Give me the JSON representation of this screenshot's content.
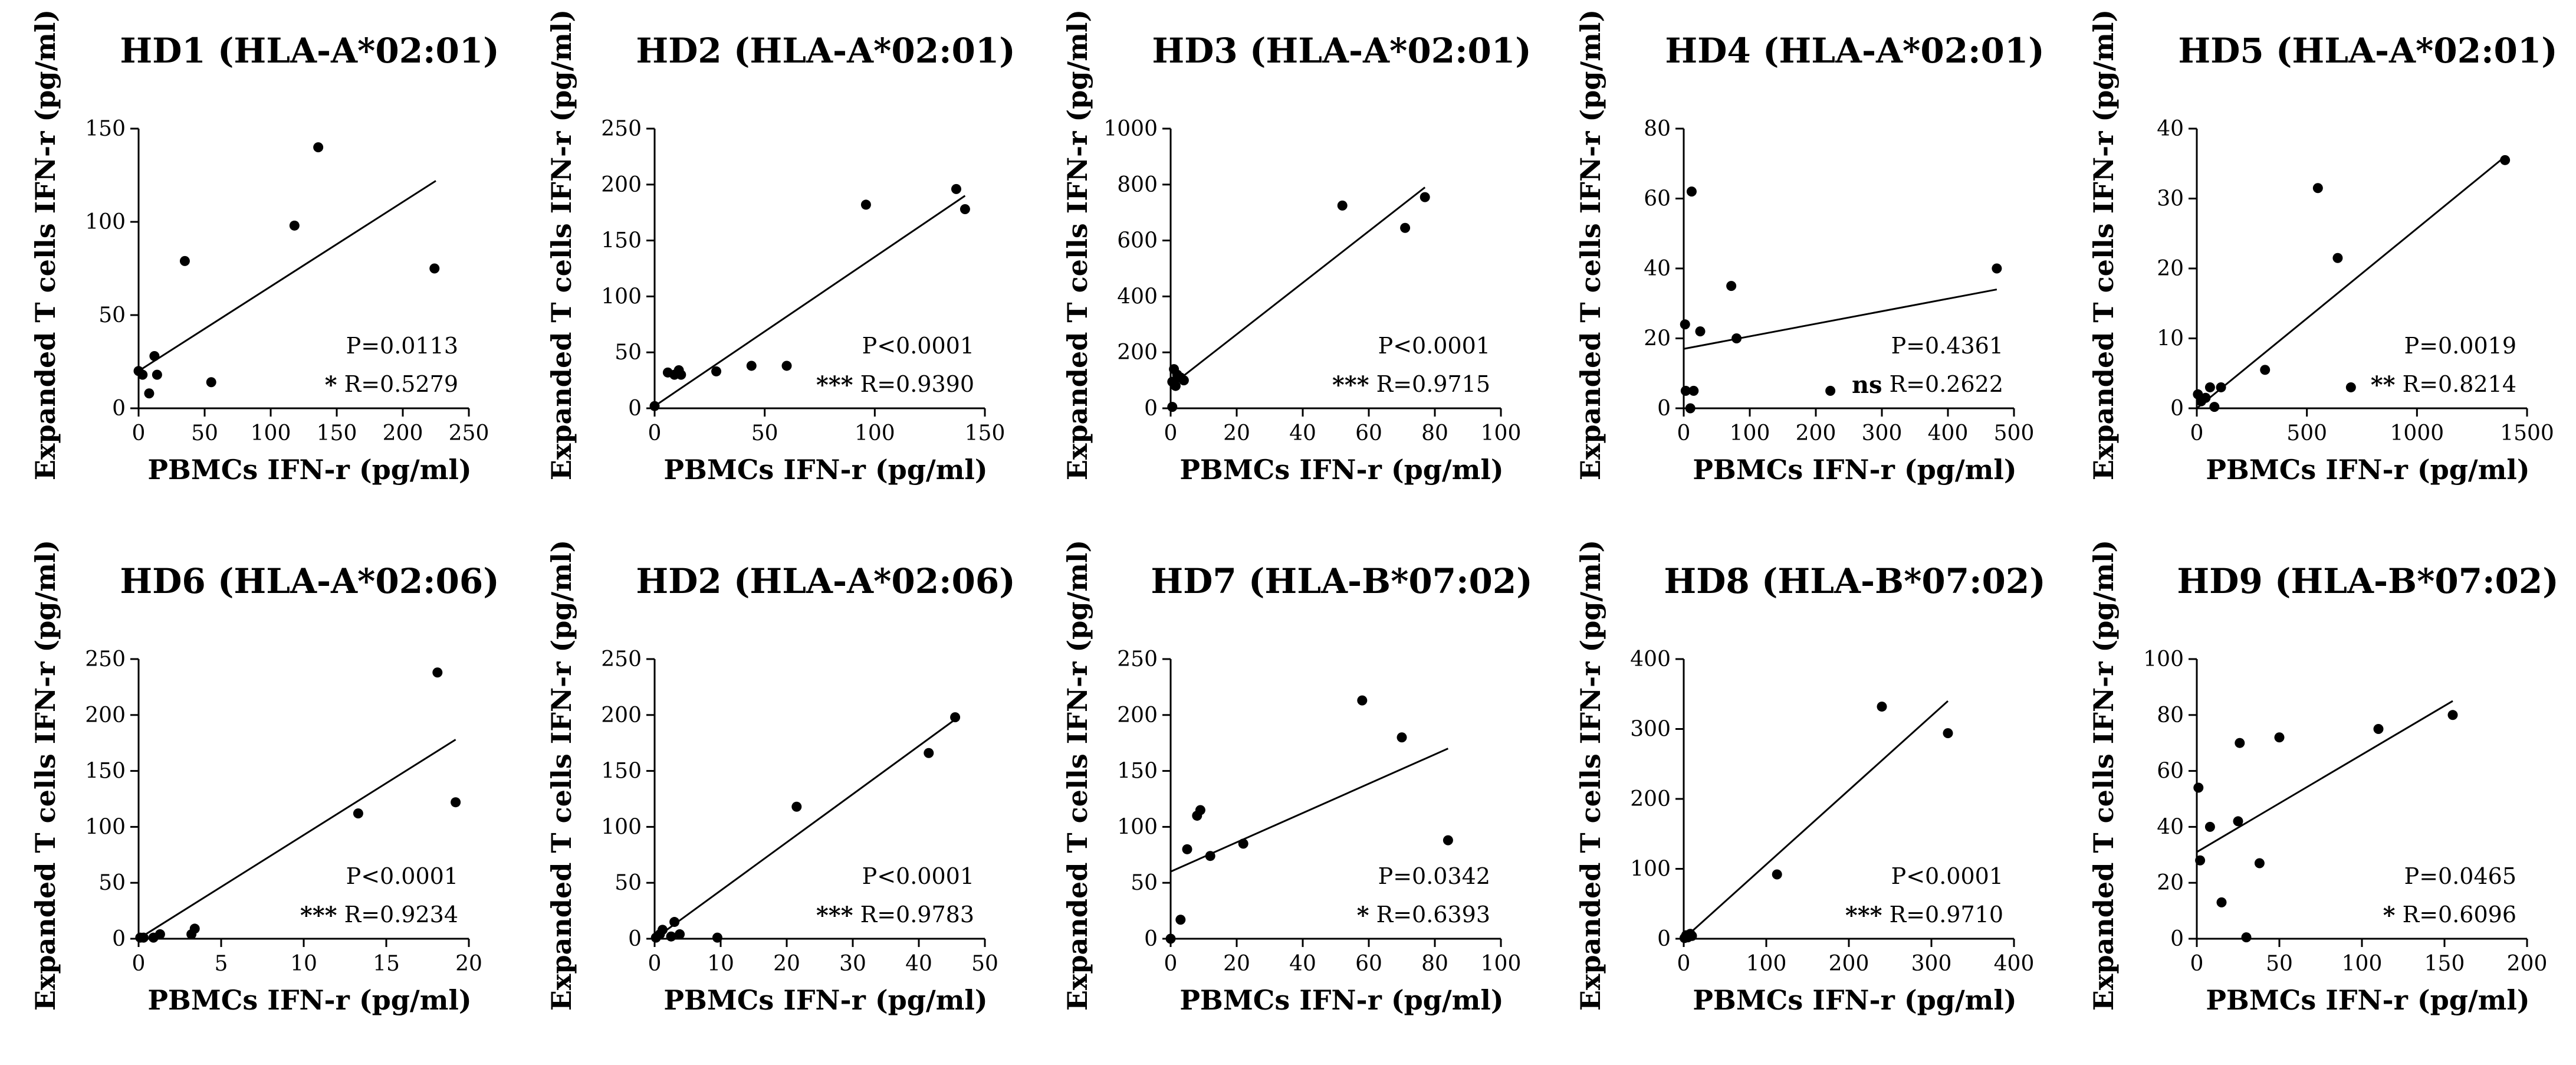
{
  "chart_data": [
    {
      "type": "scatter",
      "title": "HD1 (HLA-A*02:01)",
      "xlabel": "PBMCs IFN-r (pg/ml)",
      "ylabel": "Expanded T cells IFN-r (pg/ml)",
      "xlim": [
        0,
        250
      ],
      "ylim": [
        0,
        150
      ],
      "xticks": [
        0,
        50,
        100,
        150,
        200,
        250
      ],
      "yticks": [
        0,
        50,
        100,
        150
      ],
      "points": [
        [
          0,
          20
        ],
        [
          3,
          18
        ],
        [
          8,
          8
        ],
        [
          12,
          28
        ],
        [
          14,
          18
        ],
        [
          35,
          79
        ],
        [
          55,
          14
        ],
        [
          118,
          98
        ],
        [
          136,
          140
        ],
        [
          224,
          75
        ]
      ],
      "fit": [
        [
          0,
          20
        ],
        [
          225,
          122
        ]
      ],
      "p_text": "P=0.0113",
      "r_text": "R=0.5279",
      "significance": "*"
    },
    {
      "type": "scatter",
      "title": "HD2 (HLA-A*02:01)",
      "xlabel": "PBMCs IFN-r (pg/ml)",
      "ylabel": "Expanded T cells IFN-r (pg/ml)",
      "xlim": [
        0,
        150
      ],
      "ylim": [
        0,
        250
      ],
      "xticks": [
        0,
        50,
        100,
        150
      ],
      "yticks": [
        0,
        50,
        100,
        150,
        200,
        250
      ],
      "points": [
        [
          0,
          2
        ],
        [
          6,
          32
        ],
        [
          9,
          30
        ],
        [
          11,
          34
        ],
        [
          12,
          30
        ],
        [
          28,
          33
        ],
        [
          44,
          38
        ],
        [
          60,
          38
        ],
        [
          96,
          182
        ],
        [
          137,
          196
        ],
        [
          141,
          178
        ]
      ],
      "fit": [
        [
          0,
          2
        ],
        [
          141,
          190
        ]
      ],
      "p_text": "P<0.0001",
      "r_text": "R=0.9390",
      "significance": "***"
    },
    {
      "type": "scatter",
      "title": "HD3 (HLA-A*02:01)",
      "xlabel": "PBMCs IFN-r (pg/ml)",
      "ylabel": "Expanded T cells IFN-r (pg/ml)",
      "xlim": [
        0,
        100
      ],
      "ylim": [
        0,
        1000
      ],
      "xticks": [
        0,
        20,
        40,
        60,
        80,
        100
      ],
      "yticks": [
        0,
        200,
        400,
        600,
        800,
        1000
      ],
      "points": [
        [
          0.5,
          5
        ],
        [
          0.5,
          95
        ],
        [
          1,
          140
        ],
        [
          1.5,
          80
        ],
        [
          2,
          120
        ],
        [
          3,
          110
        ],
        [
          4,
          100
        ],
        [
          52,
          725
        ],
        [
          71,
          645
        ],
        [
          77,
          755
        ]
      ],
      "fit": [
        [
          0,
          80
        ],
        [
          77,
          790
        ]
      ],
      "p_text": "P<0.0001",
      "r_text": "R=0.9715",
      "significance": "***"
    },
    {
      "type": "scatter",
      "title": "HD4 (HLA-A*02:01)",
      "xlabel": "PBMCs IFN-r (pg/ml)",
      "ylabel": "Expanded T cells IFN-r (pg/ml)",
      "xlim": [
        0,
        500
      ],
      "ylim": [
        0,
        80
      ],
      "xticks": [
        0,
        100,
        200,
        300,
        400,
        500
      ],
      "yticks": [
        0,
        20,
        40,
        60,
        80
      ],
      "points": [
        [
          2,
          24
        ],
        [
          3,
          5
        ],
        [
          10,
          0
        ],
        [
          12,
          62
        ],
        [
          15,
          5
        ],
        [
          25,
          22
        ],
        [
          72,
          35
        ],
        [
          80,
          20
        ],
        [
          222,
          5
        ],
        [
          474,
          40
        ]
      ],
      "fit": [
        [
          0,
          17
        ],
        [
          474,
          34
        ]
      ],
      "p_text": "P=0.4361",
      "r_text": "R=0.2622",
      "significance": "ns"
    },
    {
      "type": "scatter",
      "title": "HD5 (HLA-A*02:01)",
      "xlabel": "PBMCs IFN-r (pg/ml)",
      "ylabel": "Expanded T cells IFN-r (pg/ml)",
      "xlim": [
        0,
        1500
      ],
      "ylim": [
        0,
        40
      ],
      "xticks": [
        0,
        500,
        1000,
        1500
      ],
      "yticks": [
        0,
        10,
        20,
        30,
        40
      ],
      "points": [
        [
          5,
          2
        ],
        [
          20,
          1
        ],
        [
          40,
          1.5
        ],
        [
          60,
          3
        ],
        [
          80,
          0.2
        ],
        [
          110,
          3
        ],
        [
          310,
          5.5
        ],
        [
          550,
          31.5
        ],
        [
          640,
          21.5
        ],
        [
          700,
          3
        ],
        [
          1400,
          35.5
        ]
      ],
      "fit": [
        [
          0,
          0
        ],
        [
          1400,
          36
        ]
      ],
      "p_text": "P=0.0019",
      "r_text": "R=0.8214",
      "significance": "**"
    },
    {
      "type": "scatter",
      "title": "HD6 (HLA-A*02:06)",
      "xlabel": "PBMCs IFN-r (pg/ml)",
      "ylabel": "Expanded T cells IFN-r (pg/ml)",
      "xlim": [
        0,
        20
      ],
      "ylim": [
        0,
        250
      ],
      "xticks": [
        0,
        5,
        10,
        15,
        20
      ],
      "yticks": [
        0,
        50,
        100,
        150,
        200,
        250
      ],
      "points": [
        [
          0.1,
          1
        ],
        [
          0.3,
          1
        ],
        [
          0.9,
          1
        ],
        [
          1.3,
          4
        ],
        [
          3.2,
          4
        ],
        [
          3.4,
          9
        ],
        [
          13.3,
          112
        ],
        [
          18.1,
          238
        ],
        [
          19.2,
          122
        ]
      ],
      "fit": [
        [
          0,
          0
        ],
        [
          19.2,
          178
        ]
      ],
      "p_text": "P<0.0001",
      "r_text": "R=0.9234",
      "significance": "***"
    },
    {
      "type": "scatter",
      "title": "HD2 (HLA-A*02:06)",
      "xlabel": "PBMCs IFN-r (pg/ml)",
      "ylabel": "Expanded T cells IFN-r (pg/ml)",
      "xlim": [
        0,
        50
      ],
      "ylim": [
        0,
        250
      ],
      "xticks": [
        0,
        10,
        20,
        30,
        40,
        50
      ],
      "yticks": [
        0,
        50,
        100,
        150,
        200,
        250
      ],
      "points": [
        [
          0.2,
          1
        ],
        [
          0.8,
          4
        ],
        [
          1.2,
          8
        ],
        [
          2.5,
          2
        ],
        [
          3,
          15
        ],
        [
          3.8,
          4
        ],
        [
          9.5,
          1
        ],
        [
          21.5,
          118
        ],
        [
          41.5,
          166
        ],
        [
          45.5,
          198
        ]
      ],
      "fit": [
        [
          0,
          0
        ],
        [
          45.5,
          196
        ]
      ],
      "p_text": "P<0.0001",
      "r_text": "R=0.9783",
      "significance": "***"
    },
    {
      "type": "scatter",
      "title": "HD7 (HLA-B*07:02)",
      "xlabel": "PBMCs IFN-r (pg/ml)",
      "ylabel": "Expanded T cells IFN-r (pg/ml)",
      "xlim": [
        0,
        100
      ],
      "ylim": [
        0,
        250
      ],
      "xticks": [
        0,
        20,
        40,
        60,
        80,
        100
      ],
      "yticks": [
        0,
        50,
        100,
        150,
        200,
        250
      ],
      "points": [
        [
          0,
          0
        ],
        [
          3,
          17
        ],
        [
          5,
          80
        ],
        [
          8,
          110
        ],
        [
          9,
          115
        ],
        [
          12,
          74
        ],
        [
          22,
          85
        ],
        [
          58,
          213
        ],
        [
          70,
          180
        ],
        [
          84,
          88
        ]
      ],
      "fit": [
        [
          0,
          60
        ],
        [
          84,
          170
        ]
      ],
      "p_text": "P=0.0342",
      "r_text": "R=0.6393",
      "significance": "*"
    },
    {
      "type": "scatter",
      "title": "HD8 (HLA-B*07:02)",
      "xlabel": "PBMCs IFN-r (pg/ml)",
      "ylabel": "Expanded T cells IFN-r (pg/ml)",
      "xlim": [
        0,
        400
      ],
      "ylim": [
        0,
        400
      ],
      "xticks": [
        0,
        100,
        200,
        300,
        400
      ],
      "yticks": [
        0,
        100,
        200,
        300,
        400
      ],
      "points": [
        [
          1,
          1
        ],
        [
          3,
          5
        ],
        [
          5,
          2
        ],
        [
          8,
          7
        ],
        [
          10,
          4
        ],
        [
          113,
          92
        ],
        [
          240,
          332
        ],
        [
          320,
          294
        ]
      ],
      "fit": [
        [
          0,
          0
        ],
        [
          320,
          340
        ]
      ],
      "p_text": "P<0.0001",
      "r_text": "R=0.9710",
      "significance": "***"
    },
    {
      "type": "scatter",
      "title": "HD9 (HLA-B*07:02)",
      "xlabel": "PBMCs IFN-r (pg/ml)",
      "ylabel": "Expanded T cells IFN-r (pg/ml)",
      "xlim": [
        0,
        200
      ],
      "ylim": [
        0,
        100
      ],
      "xticks": [
        0,
        50,
        100,
        150,
        200
      ],
      "yticks": [
        0,
        20,
        40,
        60,
        80,
        100
      ],
      "points": [
        [
          1,
          54
        ],
        [
          2,
          28
        ],
        [
          8,
          40
        ],
        [
          15,
          13
        ],
        [
          25,
          42
        ],
        [
          26,
          70
        ],
        [
          30,
          0.5
        ],
        [
          38,
          27
        ],
        [
          50,
          72
        ],
        [
          110,
          75
        ],
        [
          155,
          80
        ]
      ],
      "fit": [
        [
          0,
          31
        ],
        [
          155,
          85
        ]
      ],
      "p_text": "P=0.0465",
      "r_text": "R=0.6096",
      "significance": "*"
    }
  ]
}
